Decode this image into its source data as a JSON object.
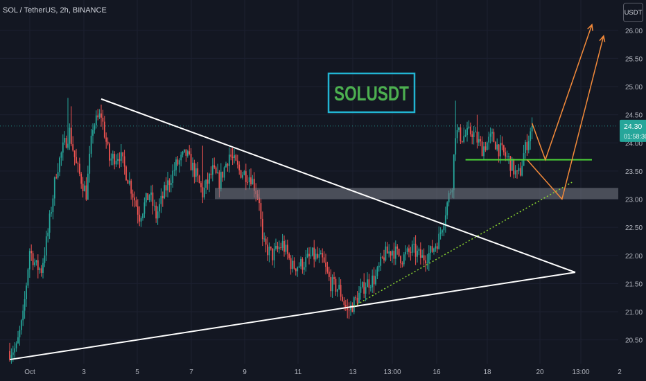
{
  "header": {
    "symbol": "SOL / TetherUS, 2h, BINANCE",
    "currency_button": "USDT"
  },
  "annotation": {
    "label": "SOLUSDT"
  },
  "price_tag": {
    "price": "24.30",
    "countdown": "01:58:30"
  },
  "colors": {
    "background": "#131722",
    "up": "#26a69a",
    "down": "#ef5350",
    "label": "#4caf50",
    "label_border": "#22b5d3",
    "arrows": "#f58b3a",
    "support": "#4cd137",
    "zone": "#787b86"
  },
  "chart_data": {
    "type": "candlestick",
    "title": "SOL / TetherUS, 2h, BINANCE",
    "xlabel": "",
    "ylabel": "",
    "x_ticks": [
      "Oct",
      "3",
      "5",
      "7",
      "9",
      "11",
      "13",
      "13:00",
      "16",
      "18",
      "20",
      "13:00",
      "2"
    ],
    "y_ticks": [
      "20.50",
      "21.00",
      "21.50",
      "22.00",
      "22.50",
      "23.00",
      "23.50",
      "24.00",
      "24.50",
      "25.00",
      "25.50",
      "26.00"
    ],
    "ylim": [
      20.13,
      26.4
    ],
    "last_price": 24.3,
    "anchors": [
      {
        "t": 0,
        "p": 20.3
      },
      {
        "t": 4,
        "p": 20.35
      },
      {
        "t": 8,
        "p": 20.9
      },
      {
        "t": 12,
        "p": 22.1
      },
      {
        "t": 16,
        "p": 21.8
      },
      {
        "t": 19,
        "p": 21.75
      },
      {
        "t": 23,
        "p": 22.4
      },
      {
        "t": 28,
        "p": 23.5
      },
      {
        "t": 32,
        "p": 23.9
      },
      {
        "t": 36,
        "p": 24.2
      },
      {
        "t": 40,
        "p": 23.6
      },
      {
        "t": 46,
        "p": 23.1
      },
      {
        "t": 50,
        "p": 24.3
      },
      {
        "t": 55,
        "p": 24.5
      },
      {
        "t": 60,
        "p": 23.7
      },
      {
        "t": 66,
        "p": 23.8
      },
      {
        "t": 72,
        "p": 23.3
      },
      {
        "t": 78,
        "p": 22.7
      },
      {
        "t": 84,
        "p": 23.1
      },
      {
        "t": 88,
        "p": 22.7
      },
      {
        "t": 94,
        "p": 23.2
      },
      {
        "t": 100,
        "p": 23.6
      },
      {
        "t": 106,
        "p": 23.8
      },
      {
        "t": 111,
        "p": 23.5
      },
      {
        "t": 116,
        "p": 23.1
      },
      {
        "t": 122,
        "p": 23.5
      },
      {
        "t": 126,
        "p": 23.3
      },
      {
        "t": 132,
        "p": 23.8
      },
      {
        "t": 138,
        "p": 23.5
      },
      {
        "t": 145,
        "p": 23.4
      },
      {
        "t": 150,
        "p": 23.0
      },
      {
        "t": 152,
        "p": 22.2
      },
      {
        "t": 158,
        "p": 22.0
      },
      {
        "t": 164,
        "p": 22.2
      },
      {
        "t": 170,
        "p": 21.8
      },
      {
        "t": 176,
        "p": 21.85
      },
      {
        "t": 182,
        "p": 22.0
      },
      {
        "t": 188,
        "p": 21.9
      },
      {
        "t": 193,
        "p": 21.5
      },
      {
        "t": 198,
        "p": 21.4
      },
      {
        "t": 203,
        "p": 21.0
      },
      {
        "t": 208,
        "p": 21.2
      },
      {
        "t": 214,
        "p": 21.5
      },
      {
        "t": 220,
        "p": 21.6
      },
      {
        "t": 225,
        "p": 22.0
      },
      {
        "t": 230,
        "p": 22.1
      },
      {
        "t": 236,
        "p": 21.95
      },
      {
        "t": 242,
        "p": 22.1
      },
      {
        "t": 248,
        "p": 21.95
      },
      {
        "t": 253,
        "p": 22.05
      },
      {
        "t": 258,
        "p": 22.3
      },
      {
        "t": 262,
        "p": 22.8
      },
      {
        "t": 266,
        "p": 23.3
      },
      {
        "t": 268,
        "p": 24.2
      },
      {
        "t": 272,
        "p": 24.1
      },
      {
        "t": 278,
        "p": 24.2
      },
      {
        "t": 284,
        "p": 23.9
      },
      {
        "t": 290,
        "p": 24.1
      },
      {
        "t": 294,
        "p": 23.9
      },
      {
        "t": 300,
        "p": 23.7
      },
      {
        "t": 305,
        "p": 23.4
      },
      {
        "t": 307,
        "p": 23.5
      },
      {
        "t": 309,
        "p": 23.8
      },
      {
        "t": 314,
        "p": 24.3
      }
    ],
    "annotations": {
      "resistance_line": [
        {
          "i": 55,
          "p": 24.78
        },
        {
          "i": 340,
          "p": 21.7
        }
      ],
      "support_line": [
        {
          "i": 0,
          "p": 20.15
        },
        {
          "i": 340,
          "p": 21.7
        }
      ],
      "rising_support": [
        {
          "i": 207,
          "p": 21.1
        },
        {
          "i": 338,
          "p": 23.3
        }
      ],
      "resistance_zone": {
        "from_i": 120,
        "to_i": 360,
        "low": 23.0,
        "high": 23.2
      },
      "green_level": {
        "from_i": 274,
        "to_i": 350,
        "p": 23.7
      },
      "projection_1": [
        {
          "i": 314,
          "p": 24.35
        },
        {
          "i": 322,
          "p": 23.7
        },
        {
          "i": 350,
          "p": 26.1
        }
      ],
      "projection_2": [
        {
          "i": 311,
          "p": 23.7
        },
        {
          "i": 332,
          "p": 23.0
        },
        {
          "i": 357,
          "p": 25.9
        }
      ]
    }
  }
}
